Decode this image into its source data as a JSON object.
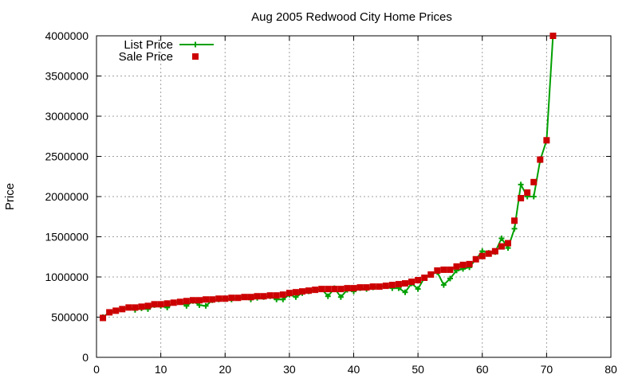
{
  "chart_data": {
    "type": "scatter",
    "title": "Aug 2005 Redwood City Home Prices",
    "xlabel": "",
    "ylabel": "Price",
    "xlim": [
      0,
      80
    ],
    "ylim": [
      0,
      4000000
    ],
    "x_ticks": [
      0,
      10,
      20,
      30,
      40,
      50,
      60,
      70,
      80
    ],
    "y_ticks": [
      0,
      500000,
      1000000,
      1500000,
      2000000,
      2500000,
      3000000,
      3500000,
      4000000
    ],
    "x_tick_labels": [
      "0",
      "10",
      "20",
      "30",
      "40",
      "50",
      "60",
      "70",
      "80"
    ],
    "y_tick_labels": [
      "0",
      "500000",
      "1000000",
      "1500000",
      "2000000",
      "2500000",
      "3000000",
      "3500000",
      "4000000"
    ],
    "grid": true,
    "legend_position": "top-left",
    "colors": {
      "list": "#00a000",
      "sale": "#cc0000",
      "grid": "#a0a0a0"
    },
    "series": [
      {
        "name": "List Price",
        "style": "line-with-plus-markers",
        "x": [
          1,
          2,
          3,
          4,
          5,
          6,
          7,
          8,
          9,
          10,
          11,
          12,
          13,
          14,
          15,
          16,
          17,
          18,
          19,
          20,
          21,
          22,
          23,
          24,
          25,
          26,
          27,
          28,
          29,
          30,
          31,
          32,
          33,
          34,
          35,
          36,
          37,
          38,
          39,
          40,
          41,
          42,
          43,
          44,
          45,
          46,
          47,
          48,
          49,
          50,
          51,
          52,
          53,
          54,
          55,
          56,
          57,
          58,
          59,
          60,
          61,
          62,
          63,
          64,
          65,
          66,
          67,
          68,
          69,
          70,
          71
        ],
        "values": [
          500000,
          560000,
          580000,
          600000,
          620000,
          590000,
          610000,
          600000,
          650000,
          640000,
          620000,
          680000,
          690000,
          640000,
          700000,
          650000,
          640000,
          710000,
          720000,
          730000,
          720000,
          740000,
          750000,
          720000,
          740000,
          750000,
          760000,
          720000,
          720000,
          780000,
          750000,
          800000,
          820000,
          840000,
          850000,
          760000,
          860000,
          750000,
          840000,
          820000,
          860000,
          850000,
          870000,
          880000,
          890000,
          860000,
          860000,
          810000,
          920000,
          850000,
          990000,
          1030000,
          1060000,
          900000,
          980000,
          1080000,
          1100000,
          1120000,
          1220000,
          1320000,
          1300000,
          1310000,
          1480000,
          1360000,
          1600000,
          2150000,
          2000000,
          2000000,
          2450000,
          2700000,
          4000000
        ]
      },
      {
        "name": "Sale Price",
        "style": "square-markers",
        "x": [
          1,
          2,
          3,
          4,
          5,
          6,
          7,
          8,
          9,
          10,
          11,
          12,
          13,
          14,
          15,
          16,
          17,
          18,
          19,
          20,
          21,
          22,
          23,
          24,
          25,
          26,
          27,
          28,
          29,
          30,
          31,
          32,
          33,
          34,
          35,
          36,
          37,
          38,
          39,
          40,
          41,
          42,
          43,
          44,
          45,
          46,
          47,
          48,
          49,
          50,
          51,
          52,
          53,
          54,
          55,
          56,
          57,
          58,
          59,
          60,
          61,
          62,
          63,
          64,
          65,
          66,
          67,
          68,
          69,
          70,
          71
        ],
        "values": [
          490000,
          560000,
          580000,
          600000,
          620000,
          620000,
          630000,
          640000,
          660000,
          660000,
          670000,
          680000,
          690000,
          700000,
          710000,
          710000,
          720000,
          720000,
          730000,
          730000,
          740000,
          740000,
          750000,
          750000,
          760000,
          760000,
          770000,
          770000,
          780000,
          800000,
          810000,
          820000,
          830000,
          840000,
          850000,
          850000,
          850000,
          850000,
          860000,
          860000,
          870000,
          870000,
          880000,
          880000,
          890000,
          900000,
          910000,
          920000,
          940000,
          960000,
          990000,
          1030000,
          1080000,
          1090000,
          1090000,
          1130000,
          1150000,
          1160000,
          1220000,
          1260000,
          1290000,
          1320000,
          1380000,
          1420000,
          1700000,
          1980000,
          2050000,
          2180000,
          2460000,
          2700000,
          4000000
        ]
      }
    ]
  }
}
